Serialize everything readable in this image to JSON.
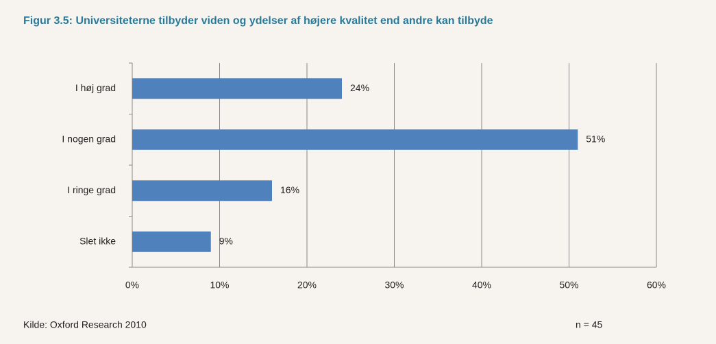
{
  "chart_data": {
    "type": "hbar",
    "title": "Figur 3.5: Universiteterne tilbyder  viden og ydelser af højere kvalitet end andre kan tilbyde",
    "categories": [
      "I høj grad",
      "I nogen grad",
      "I ringe grad",
      "Slet ikke"
    ],
    "values": [
      24,
      51,
      16,
      9
    ],
    "value_labels": [
      "24%",
      "51%",
      "16%",
      "9%"
    ],
    "color": "#4f81bd",
    "xlim": [
      0,
      60
    ],
    "xticks": [
      {
        "value": 0,
        "label": "0%"
      },
      {
        "value": 10,
        "label": "10%"
      },
      {
        "value": 20,
        "label": "20%"
      },
      {
        "value": 30,
        "label": "30%"
      },
      {
        "value": 40,
        "label": "40%"
      },
      {
        "value": 50,
        "label": "50%"
      },
      {
        "value": 60,
        "label": "60%"
      }
    ],
    "grid": true,
    "source": "Kilde: Oxford Research 2010",
    "note": "n = 45"
  }
}
